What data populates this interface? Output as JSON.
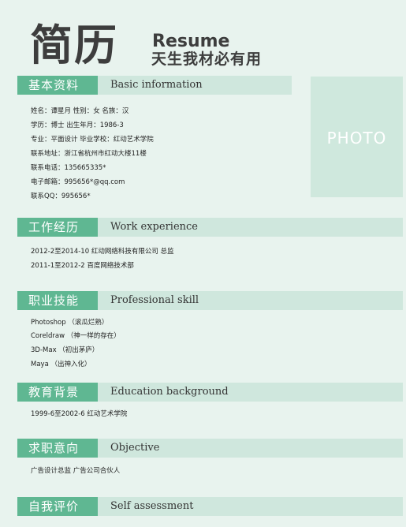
{
  "header": {
    "title_cn": "简历",
    "title_en": "Resume",
    "subtitle": "天生我材必有用"
  },
  "photo": {
    "label": "PHOTO"
  },
  "sections": {
    "basic": {
      "tag": "基本资料",
      "en": "Basic information",
      "lines": [
        "姓名：谭星月   性别：女    名族：汉",
        "学历：博士   出生年月：1986-3",
        "专业：平面设计    毕业学校：红动艺术学院",
        "联系地址：浙江省杭州市红动大楼11楼",
        "联系电话：135665335*",
        "电子邮箱：995656*@qq.com",
        "联系QQ：995656*"
      ]
    },
    "work": {
      "tag": "工作经历",
      "en": "Work experience",
      "lines": [
        "2012-2至2014-10    红动网络科技有限公司 总监",
        "2011-1至2012-2     百度网络技术部"
      ]
    },
    "skill": {
      "tag": "职业技能",
      "en": "Professional skill",
      "lines": [
        "Photoshop （滚瓜烂熟）",
        "Coreldraw  （神一样的存在）",
        "3D-Max  （初出茅庐）",
        "Maya （出神入化）"
      ]
    },
    "edu": {
      "tag": "教育背景",
      "en": "Education background",
      "lines": [
        "1999-6至2002-6   红动艺术学院"
      ]
    },
    "objective": {
      "tag": "求职意向",
      "en": "Objective",
      "lines": [
        "广告设计总监   广告公司合伙人"
      ]
    },
    "self": {
      "tag": "自我评价",
      "en": "Self assessment"
    }
  }
}
